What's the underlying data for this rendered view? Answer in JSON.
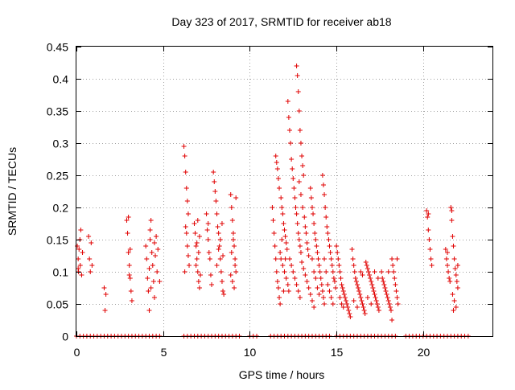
{
  "chart_data": {
    "type": "scatter",
    "title": "Day 323 of 2017, SRMTID for receiver ab18",
    "xlabel": "GPS time / hours",
    "ylabel": "SRMTID / TECUs",
    "xlim": [
      0,
      24
    ],
    "ylim": [
      0,
      0.45
    ],
    "grid": true,
    "marker": "plus",
    "series_color": "#e00000",
    "x_ticks": [
      0,
      5,
      10,
      15,
      20
    ],
    "x_tick_labels": [
      "0",
      "5",
      "10",
      "15",
      "20"
    ],
    "y_ticks": [
      0,
      0.05,
      0.1,
      0.15,
      0.2,
      0.25,
      0.3,
      0.35,
      0.4,
      0.45
    ],
    "y_tick_labels": [
      "0",
      "0.05",
      "0.1",
      "0.15",
      "0.2",
      "0.25",
      "0.3",
      "0.35",
      "0.4",
      "0.45"
    ],
    "points": [
      [
        0.05,
        0.14
      ],
      [
        0.1,
        0.12
      ],
      [
        0.12,
        0.1
      ],
      [
        0.15,
        0.135
      ],
      [
        0.2,
        0.15
      ],
      [
        0.22,
        0.11
      ],
      [
        0.25,
        0.165
      ],
      [
        0.3,
        0.095
      ],
      [
        0.35,
        0.13
      ],
      [
        0.1,
        0.105
      ],
      [
        0.7,
        0.155
      ],
      [
        0.75,
        0.12
      ],
      [
        0.8,
        0.1
      ],
      [
        0.85,
        0.145
      ],
      [
        0.9,
        0.11
      ],
      [
        1.6,
        0.075
      ],
      [
        1.65,
        0.04
      ],
      [
        1.7,
        0.065
      ],
      [
        2.9,
        0.18
      ],
      [
        2.95,
        0.16
      ],
      [
        3.0,
        0.13
      ],
      [
        3.05,
        0.11
      ],
      [
        3.1,
        0.09
      ],
      [
        3.15,
        0.07
      ],
      [
        3.2,
        0.055
      ],
      [
        3.0,
        0.185
      ],
      [
        3.1,
        0.135
      ],
      [
        3.05,
        0.095
      ],
      [
        4.0,
        0.14
      ],
      [
        4.05,
        0.12
      ],
      [
        4.1,
        0.09
      ],
      [
        4.15,
        0.07
      ],
      [
        4.2,
        0.105
      ],
      [
        4.25,
        0.15
      ],
      [
        4.3,
        0.18
      ],
      [
        4.35,
        0.13
      ],
      [
        4.4,
        0.11
      ],
      [
        4.45,
        0.085
      ],
      [
        4.5,
        0.06
      ],
      [
        4.55,
        0.125
      ],
      [
        4.6,
        0.155
      ],
      [
        4.65,
        0.1
      ],
      [
        4.7,
        0.135
      ],
      [
        4.2,
        0.04
      ],
      [
        4.3,
        0.075
      ],
      [
        4.8,
        0.085
      ],
      [
        4.25,
        0.165
      ],
      [
        4.5,
        0.145
      ],
      [
        6.2,
        0.295
      ],
      [
        6.25,
        0.28
      ],
      [
        6.3,
        0.255
      ],
      [
        6.35,
        0.23
      ],
      [
        6.4,
        0.21
      ],
      [
        6.45,
        0.19
      ],
      [
        6.3,
        0.17
      ],
      [
        6.35,
        0.16
      ],
      [
        6.4,
        0.14
      ],
      [
        6.45,
        0.125
      ],
      [
        6.5,
        0.11
      ],
      [
        6.25,
        0.1
      ],
      [
        6.8,
        0.175
      ],
      [
        6.85,
        0.16
      ],
      [
        6.9,
        0.14
      ],
      [
        6.95,
        0.12
      ],
      [
        7.0,
        0.1
      ],
      [
        7.05,
        0.085
      ],
      [
        7.1,
        0.075
      ],
      [
        7.0,
        0.18
      ],
      [
        7.1,
        0.155
      ],
      [
        7.05,
        0.13
      ],
      [
        6.9,
        0.11
      ],
      [
        7.15,
        0.095
      ],
      [
        6.95,
        0.145
      ],
      [
        7.5,
        0.19
      ],
      [
        7.55,
        0.165
      ],
      [
        7.6,
        0.15
      ],
      [
        7.65,
        0.13
      ],
      [
        7.7,
        0.12
      ],
      [
        7.75,
        0.095
      ],
      [
        7.8,
        0.08
      ],
      [
        7.6,
        0.175
      ],
      [
        7.9,
        0.255
      ],
      [
        7.95,
        0.24
      ],
      [
        8.0,
        0.225
      ],
      [
        8.05,
        0.21
      ],
      [
        8.1,
        0.19
      ],
      [
        8.15,
        0.17
      ],
      [
        8.2,
        0.16
      ],
      [
        8.25,
        0.14
      ],
      [
        8.3,
        0.12
      ],
      [
        8.35,
        0.1
      ],
      [
        8.4,
        0.085
      ],
      [
        8.45,
        0.07
      ],
      [
        8.5,
        0.065
      ],
      [
        8.2,
        0.135
      ],
      [
        8.3,
        0.15
      ],
      [
        8.1,
        0.11
      ],
      [
        8.4,
        0.175
      ],
      [
        8.45,
        0.125
      ],
      [
        8.9,
        0.22
      ],
      [
        8.95,
        0.2
      ],
      [
        9.0,
        0.18
      ],
      [
        9.05,
        0.16
      ],
      [
        9.1,
        0.14
      ],
      [
        9.15,
        0.12
      ],
      [
        9.2,
        0.1
      ],
      [
        9.0,
        0.085
      ],
      [
        9.1,
        0.075
      ],
      [
        8.95,
        0.13
      ],
      [
        9.05,
        0.15
      ],
      [
        9.15,
        0.11
      ],
      [
        9.2,
        0.215
      ],
      [
        8.9,
        0.095
      ],
      [
        11.3,
        0.2
      ],
      [
        11.35,
        0.18
      ],
      [
        11.4,
        0.16
      ],
      [
        11.45,
        0.14
      ],
      [
        11.5,
        0.12
      ],
      [
        11.55,
        0.1
      ],
      [
        11.6,
        0.085
      ],
      [
        11.65,
        0.075
      ],
      [
        11.7,
        0.06
      ],
      [
        11.75,
        0.05
      ],
      [
        11.5,
        0.28
      ],
      [
        11.55,
        0.27
      ],
      [
        11.6,
        0.26
      ],
      [
        11.65,
        0.245
      ],
      [
        11.7,
        0.23
      ],
      [
        11.8,
        0.215
      ],
      [
        11.85,
        0.2
      ],
      [
        11.9,
        0.19
      ],
      [
        11.95,
        0.175
      ],
      [
        12.0,
        0.165
      ],
      [
        12.05,
        0.155
      ],
      [
        12.1,
        0.145
      ],
      [
        12.15,
        0.135
      ],
      [
        11.8,
        0.12
      ],
      [
        11.9,
        0.11
      ],
      [
        12.0,
        0.1
      ],
      [
        12.1,
        0.09
      ],
      [
        12.2,
        0.08
      ],
      [
        12.25,
        0.07
      ],
      [
        11.75,
        0.13
      ],
      [
        11.85,
        0.15
      ],
      [
        11.95,
        0.07
      ],
      [
        12.05,
        0.12
      ],
      [
        12.2,
        0.365
      ],
      [
        12.25,
        0.34
      ],
      [
        12.3,
        0.32
      ],
      [
        12.35,
        0.3
      ],
      [
        12.4,
        0.275
      ],
      [
        12.45,
        0.26
      ],
      [
        12.5,
        0.245
      ],
      [
        12.55,
        0.23
      ],
      [
        12.6,
        0.215
      ],
      [
        12.65,
        0.2
      ],
      [
        12.7,
        0.19
      ],
      [
        12.75,
        0.175
      ],
      [
        12.8,
        0.16
      ],
      [
        12.85,
        0.15
      ],
      [
        12.9,
        0.14
      ],
      [
        12.95,
        0.13
      ],
      [
        12.3,
        0.12
      ],
      [
        12.4,
        0.11
      ],
      [
        12.5,
        0.1
      ],
      [
        12.6,
        0.09
      ],
      [
        12.7,
        0.08
      ],
      [
        12.8,
        0.07
      ],
      [
        12.9,
        0.06
      ],
      [
        12.7,
        0.42
      ],
      [
        12.75,
        0.405
      ],
      [
        12.8,
        0.38
      ],
      [
        12.85,
        0.35
      ],
      [
        12.9,
        0.32
      ],
      [
        12.95,
        0.3
      ],
      [
        13.0,
        0.28
      ],
      [
        13.05,
        0.265
      ],
      [
        13.1,
        0.25
      ],
      [
        12.85,
        0.24
      ],
      [
        12.95,
        0.22
      ],
      [
        13.05,
        0.2
      ],
      [
        13.15,
        0.185
      ],
      [
        13.2,
        0.17
      ],
      [
        13.25,
        0.16
      ],
      [
        13.3,
        0.145
      ],
      [
        13.35,
        0.135
      ],
      [
        13.4,
        0.125
      ],
      [
        13.0,
        0.115
      ],
      [
        13.1,
        0.105
      ],
      [
        13.2,
        0.095
      ],
      [
        13.3,
        0.085
      ],
      [
        13.4,
        0.075
      ],
      [
        13.5,
        0.065
      ],
      [
        13.6,
        0.055
      ],
      [
        13.7,
        0.045
      ],
      [
        13.5,
        0.23
      ],
      [
        13.55,
        0.215
      ],
      [
        13.6,
        0.2
      ],
      [
        13.65,
        0.19
      ],
      [
        13.7,
        0.175
      ],
      [
        13.75,
        0.16
      ],
      [
        13.8,
        0.15
      ],
      [
        13.85,
        0.14
      ],
      [
        13.9,
        0.13
      ],
      [
        13.95,
        0.12
      ],
      [
        14.0,
        0.11
      ],
      [
        14.05,
        0.1
      ],
      [
        14.1,
        0.09
      ],
      [
        14.15,
        0.08
      ],
      [
        14.2,
        0.07
      ],
      [
        14.25,
        0.06
      ],
      [
        14.3,
        0.05
      ],
      [
        13.6,
        0.12
      ],
      [
        13.7,
        0.1
      ],
      [
        13.8,
        0.09
      ],
      [
        13.9,
        0.075
      ],
      [
        14.0,
        0.065
      ],
      [
        14.2,
        0.25
      ],
      [
        14.25,
        0.235
      ],
      [
        14.3,
        0.22
      ],
      [
        14.35,
        0.2
      ],
      [
        14.4,
        0.185
      ],
      [
        14.45,
        0.17
      ],
      [
        14.5,
        0.16
      ],
      [
        14.55,
        0.15
      ],
      [
        14.6,
        0.14
      ],
      [
        14.65,
        0.13
      ],
      [
        14.7,
        0.12
      ],
      [
        14.75,
        0.11
      ],
      [
        14.8,
        0.1
      ],
      [
        14.85,
        0.09
      ],
      [
        14.9,
        0.085
      ],
      [
        14.95,
        0.075
      ],
      [
        14.3,
        0.12
      ],
      [
        14.4,
        0.1
      ],
      [
        14.5,
        0.08
      ],
      [
        14.6,
        0.07
      ],
      [
        14.7,
        0.06
      ],
      [
        14.8,
        0.05
      ],
      [
        15.0,
        0.14
      ],
      [
        15.05,
        0.13
      ],
      [
        15.1,
        0.12
      ],
      [
        15.15,
        0.11
      ],
      [
        15.2,
        0.1
      ],
      [
        15.25,
        0.09
      ],
      [
        15.3,
        0.08
      ],
      [
        15.35,
        0.075
      ],
      [
        15.4,
        0.07
      ],
      [
        15.45,
        0.065
      ],
      [
        15.5,
        0.06
      ],
      [
        15.55,
        0.055
      ],
      [
        15.6,
        0.05
      ],
      [
        15.65,
        0.045
      ],
      [
        15.7,
        0.04
      ],
      [
        15.75,
        0.035
      ],
      [
        15.8,
        0.03
      ],
      [
        15.2,
        0.06
      ],
      [
        15.3,
        0.05
      ],
      [
        15.4,
        0.045
      ],
      [
        15.9,
        0.135
      ],
      [
        15.95,
        0.12
      ],
      [
        16.0,
        0.11
      ],
      [
        16.05,
        0.1
      ],
      [
        16.1,
        0.09
      ],
      [
        16.15,
        0.085
      ],
      [
        16.2,
        0.08
      ],
      [
        16.25,
        0.075
      ],
      [
        16.3,
        0.07
      ],
      [
        16.35,
        0.065
      ],
      [
        16.4,
        0.06
      ],
      [
        16.45,
        0.055
      ],
      [
        16.5,
        0.05
      ],
      [
        16.55,
        0.045
      ],
      [
        16.6,
        0.04
      ],
      [
        16.65,
        0.035
      ],
      [
        16.0,
        0.055
      ],
      [
        16.2,
        0.045
      ],
      [
        16.4,
        0.1
      ],
      [
        16.5,
        0.095
      ],
      [
        16.7,
        0.115
      ],
      [
        16.75,
        0.11
      ],
      [
        16.8,
        0.105
      ],
      [
        16.85,
        0.1
      ],
      [
        16.9,
        0.095
      ],
      [
        16.95,
        0.09
      ],
      [
        17.0,
        0.085
      ],
      [
        17.05,
        0.08
      ],
      [
        17.1,
        0.075
      ],
      [
        17.15,
        0.07
      ],
      [
        17.2,
        0.065
      ],
      [
        17.25,
        0.06
      ],
      [
        17.3,
        0.055
      ],
      [
        17.35,
        0.05
      ],
      [
        17.4,
        0.045
      ],
      [
        17.45,
        0.04
      ],
      [
        16.8,
        0.06
      ],
      [
        17.0,
        0.05
      ],
      [
        17.2,
        0.1
      ],
      [
        17.4,
        0.09
      ],
      [
        17.6,
        0.1
      ],
      [
        17.65,
        0.09
      ],
      [
        17.7,
        0.085
      ],
      [
        17.75,
        0.08
      ],
      [
        17.8,
        0.075
      ],
      [
        17.85,
        0.07
      ],
      [
        17.9,
        0.065
      ],
      [
        17.95,
        0.06
      ],
      [
        18.0,
        0.055
      ],
      [
        18.05,
        0.05
      ],
      [
        18.1,
        0.045
      ],
      [
        18.15,
        0.04
      ],
      [
        18.2,
        0.12
      ],
      [
        18.25,
        0.11
      ],
      [
        18.3,
        0.1
      ],
      [
        18.35,
        0.09
      ],
      [
        18.4,
        0.08
      ],
      [
        18.45,
        0.07
      ],
      [
        18.5,
        0.06
      ],
      [
        18.55,
        0.05
      ],
      [
        18.0,
        0.1
      ],
      [
        18.2,
        0.025
      ],
      [
        18.5,
        0.12
      ],
      [
        20.2,
        0.195
      ],
      [
        20.25,
        0.185
      ],
      [
        20.3,
        0.165
      ],
      [
        20.35,
        0.15
      ],
      [
        20.4,
        0.135
      ],
      [
        20.45,
        0.12
      ],
      [
        20.5,
        0.11
      ],
      [
        20.3,
        0.19
      ],
      [
        21.3,
        0.135
      ],
      [
        21.35,
        0.12
      ],
      [
        21.4,
        0.11
      ],
      [
        21.45,
        0.1
      ],
      [
        21.5,
        0.09
      ],
      [
        21.55,
        0.085
      ],
      [
        21.4,
        0.13
      ],
      [
        21.6,
        0.2
      ],
      [
        21.65,
        0.18
      ],
      [
        21.7,
        0.155
      ],
      [
        21.75,
        0.14
      ],
      [
        21.8,
        0.12
      ],
      [
        21.85,
        0.105
      ],
      [
        21.9,
        0.095
      ],
      [
        21.95,
        0.085
      ],
      [
        22.0,
        0.075
      ],
      [
        21.7,
        0.065
      ],
      [
        21.8,
        0.055
      ],
      [
        21.9,
        0.045
      ],
      [
        21.75,
        0.04
      ],
      [
        21.65,
        0.195
      ],
      [
        22.0,
        0.11
      ]
    ],
    "zero_points_x": [
      0,
      0.2,
      0.4,
      0.6,
      0.8,
      1.0,
      1.2,
      1.4,
      1.6,
      1.8,
      2.0,
      2.2,
      2.4,
      2.6,
      2.8,
      3.0,
      3.2,
      3.4,
      3.6,
      3.8,
      4.0,
      4.2,
      4.4,
      4.6,
      4.8,
      6.2,
      6.4,
      6.6,
      6.8,
      7.0,
      7.2,
      7.4,
      7.6,
      7.8,
      8.0,
      8.2,
      8.4,
      8.6,
      8.8,
      9.0,
      9.2,
      9.4,
      10.0,
      10.2,
      10.4,
      11.2,
      11.4,
      11.6,
      11.8,
      12.0,
      12.2,
      12.4,
      12.6,
      12.8,
      13.0,
      13.2,
      13.4,
      13.6,
      13.8,
      14.0,
      14.2,
      14.4,
      14.6,
      15.0,
      15.2,
      15.4,
      15.6,
      15.8,
      16.0,
      16.2,
      16.4,
      16.6,
      16.8,
      17.0,
      17.2,
      17.4,
      17.6,
      17.8,
      18.0,
      18.2,
      18.4,
      19.0,
      19.2,
      19.4,
      19.6,
      19.8,
      20.0,
      20.2,
      20.4,
      20.6,
      20.8,
      21.0,
      21.2,
      21.4,
      21.6,
      21.8,
      22.0,
      22.2,
      22.4,
      22.6
    ]
  }
}
